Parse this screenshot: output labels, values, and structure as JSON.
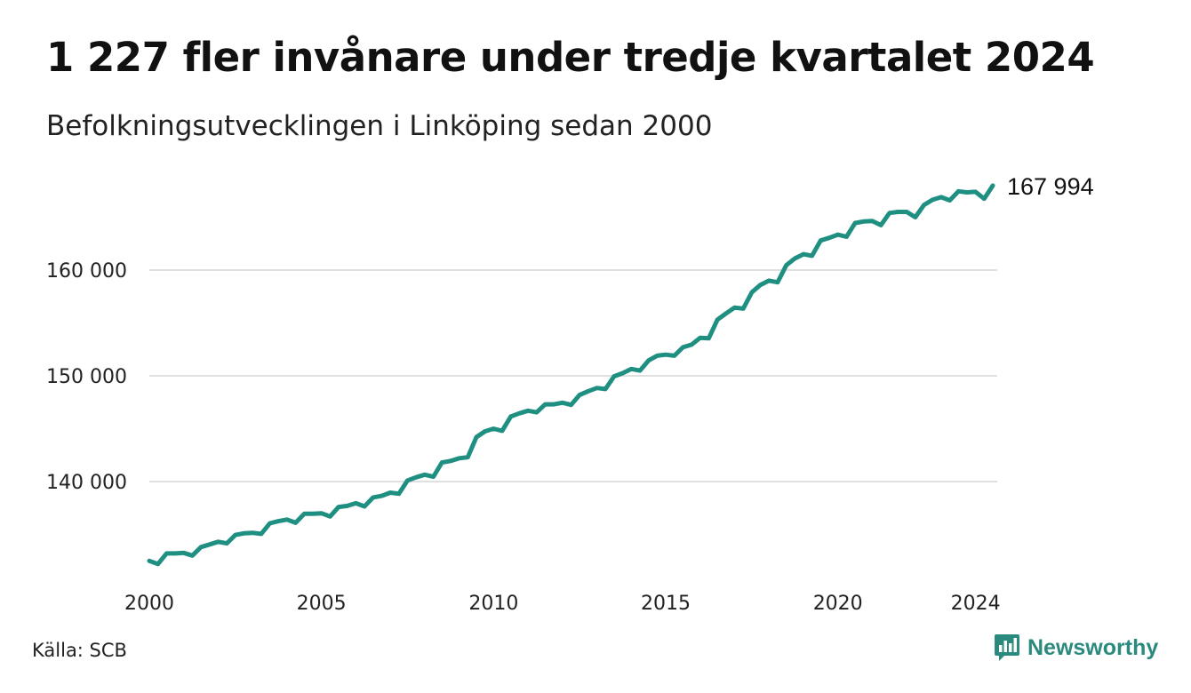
{
  "header": {
    "title": "1 227 fler invånare under tredje kvartalet 2024",
    "subtitle": "Befolkningsutvecklingen i Linköping sedan 2000"
  },
  "footer": {
    "source": "Källa: SCB",
    "brand": "Newsworthy",
    "brand_icon": "newsworthy-logo-icon"
  },
  "colors": {
    "line": "#1f8f82",
    "grid": "#e0e0e0",
    "brand": "#2a8a7d"
  },
  "chart_data": {
    "type": "line",
    "title": "1 227 fler invånare under tredje kvartalet 2024",
    "subtitle": "Befolkningsutvecklingen i Linköping sedan 2000",
    "xlabel": "",
    "ylabel": "",
    "x_ticks": [
      "2000",
      "2005",
      "2010",
      "2015",
      "2020",
      "2024"
    ],
    "y_ticks": [
      "140 000",
      "150 000",
      "160 000"
    ],
    "ylim": [
      130500,
      168500
    ],
    "xlim": [
      2000.0,
      2024.5
    ],
    "grid": "horizontal",
    "end_label": "167 994",
    "x": [
      2000.0,
      2000.25,
      2000.5,
      2000.75,
      2001.0,
      2001.25,
      2001.5,
      2001.75,
      2002.0,
      2002.25,
      2002.5,
      2002.75,
      2003.0,
      2003.25,
      2003.5,
      2003.75,
      2004.0,
      2004.25,
      2004.5,
      2004.75,
      2005.0,
      2005.25,
      2005.5,
      2005.75,
      2006.0,
      2006.25,
      2006.5,
      2006.75,
      2007.0,
      2007.25,
      2007.5,
      2007.75,
      2008.0,
      2008.25,
      2008.5,
      2008.75,
      2009.0,
      2009.25,
      2009.5,
      2009.75,
      2010.0,
      2010.25,
      2010.5,
      2010.75,
      2011.0,
      2011.25,
      2011.5,
      2011.75,
      2012.0,
      2012.25,
      2012.5,
      2012.75,
      2013.0,
      2013.25,
      2013.5,
      2013.75,
      2014.0,
      2014.25,
      2014.5,
      2014.75,
      2015.0,
      2015.25,
      2015.5,
      2015.75,
      2016.0,
      2016.25,
      2016.5,
      2016.75,
      2017.0,
      2017.25,
      2017.5,
      2017.75,
      2018.0,
      2018.25,
      2018.5,
      2018.75,
      2019.0,
      2019.25,
      2019.5,
      2019.75,
      2020.0,
      2020.25,
      2020.5,
      2020.75,
      2021.0,
      2021.25,
      2021.5,
      2021.75,
      2022.0,
      2022.25,
      2022.5,
      2022.75,
      2023.0,
      2023.25,
      2023.5,
      2023.75,
      2024.0,
      2024.25,
      2024.5
    ],
    "series": [
      {
        "values": [
          132500,
          132200,
          133200,
          133200,
          133250,
          133000,
          133800,
          134050,
          134300,
          134150,
          134950,
          135100,
          135150,
          135050,
          136050,
          136250,
          136400,
          136100,
          136950,
          136950,
          137000,
          136700,
          137600,
          137700,
          137950,
          137650,
          138500,
          138650,
          138950,
          138850,
          140100,
          140400,
          140650,
          140450,
          141800,
          141950,
          142200,
          142300,
          144200,
          144750,
          145000,
          144800,
          146150,
          146450,
          146700,
          146550,
          147300,
          147300,
          147450,
          147250,
          148200,
          148550,
          148850,
          148750,
          149950,
          150250,
          150650,
          150500,
          151450,
          151900,
          152000,
          151900,
          152700,
          152950,
          153600,
          153550,
          155300,
          155900,
          156450,
          156350,
          157900,
          158600,
          159000,
          158850,
          160450,
          161100,
          161500,
          161350,
          162800,
          163050,
          163350,
          163150,
          164450,
          164600,
          164650,
          164250,
          165400,
          165500,
          165500,
          165000,
          166150,
          166650,
          166900,
          166600,
          167450,
          167350,
          167400,
          166750,
          167994
        ]
      }
    ]
  }
}
